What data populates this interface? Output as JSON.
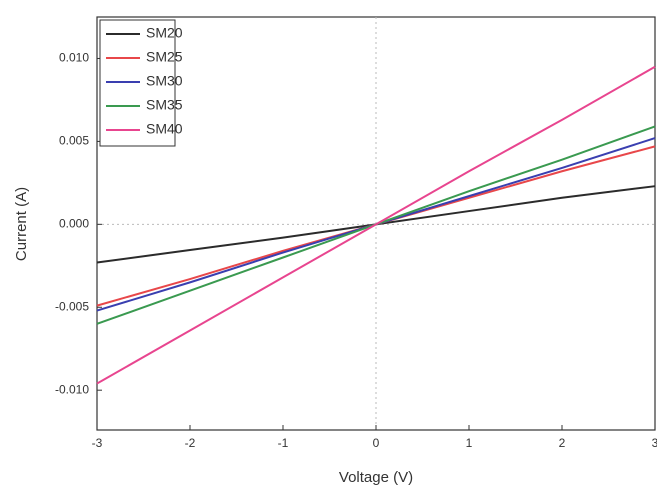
{
  "chart_data": {
    "type": "line",
    "x_label": "Voltage (V)",
    "y_label": "Current (A)",
    "x": [
      -3,
      -2,
      -1,
      0,
      1,
      2,
      3
    ],
    "series": [
      {
        "name": "SM20",
        "color": "#2b2b2b",
        "values": [
          -0.0023,
          -0.00155,
          -0.0008,
          0,
          0.0008,
          0.0016,
          0.0023
        ]
      },
      {
        "name": "SM25",
        "color": "#e8474a",
        "values": [
          -0.0049,
          -0.0033,
          -0.0016,
          0,
          0.0016,
          0.0032,
          0.0047
        ]
      },
      {
        "name": "SM30",
        "color": "#3a3fb0",
        "values": [
          -0.0052,
          -0.0035,
          -0.0017,
          0,
          0.0017,
          0.0034,
          0.0052
        ]
      },
      {
        "name": "SM35",
        "color": "#3a9a50",
        "values": [
          -0.006,
          -0.004,
          -0.002,
          0,
          0.002,
          0.0039,
          0.0059
        ]
      },
      {
        "name": "SM40",
        "color": "#e8458f",
        "values": [
          -0.0096,
          -0.0064,
          -0.0032,
          0,
          0.0032,
          0.0063,
          0.0095
        ]
      }
    ],
    "xlim": [
      -3,
      3
    ],
    "xticks": [
      -3,
      -2,
      -1,
      0,
      1,
      2,
      3
    ],
    "ylim": [
      -0.0124,
      0.0125
    ],
    "yticks": [
      {
        "value": -0.01,
        "label": "-0.010"
      },
      {
        "value": -0.005,
        "label": "-0.005"
      },
      {
        "value": 0,
        "label": "0.000"
      },
      {
        "value": 0.005,
        "label": "0.005"
      },
      {
        "value": 0.01,
        "label": "0.010"
      }
    ],
    "legend": "upper-left",
    "grid": false
  }
}
